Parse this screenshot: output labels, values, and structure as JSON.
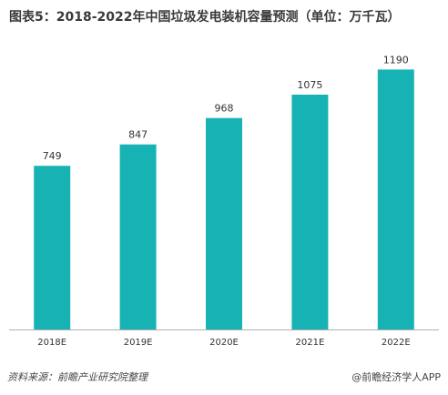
{
  "title": "图表5：2018-2022年中国垃圾发电装机容量预测（单位：万千瓦）",
  "footer": {
    "source": "资料来源：前瞻产业研究院整理",
    "brand": "@前瞻经济学人APP"
  },
  "colors": {
    "bar": "#17b3b4",
    "axis": "#b0b0b0",
    "label": "#333333"
  },
  "chart_data": {
    "type": "bar",
    "title": "图表5：2018-2022年中国垃圾发电装机容量预测（单位：万千瓦）",
    "categories": [
      "2018E",
      "2019E",
      "2020E",
      "2021E",
      "2022E"
    ],
    "values": [
      749,
      847,
      968,
      1075,
      1190
    ],
    "xlabel": "",
    "ylabel": "",
    "ylim": [
      0,
      1250
    ],
    "grid": false,
    "data_labels": true
  }
}
